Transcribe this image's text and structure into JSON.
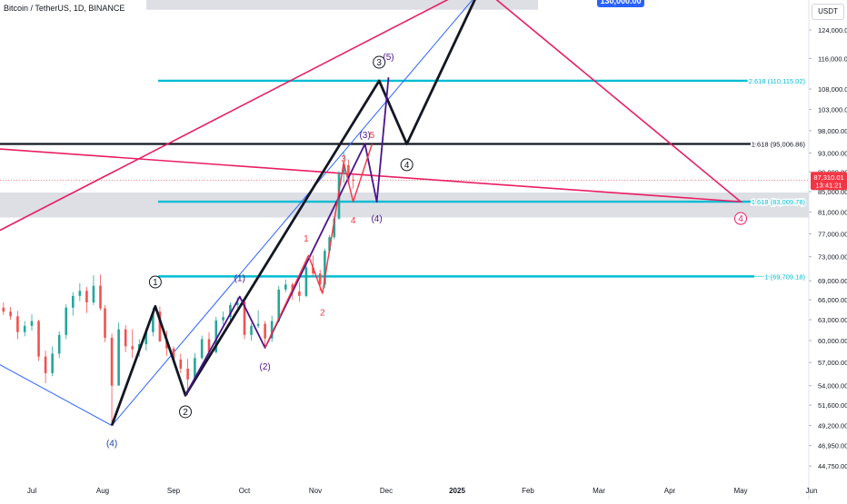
{
  "header": {
    "title": "Bitcoin / TetherUS, 1D, BINANCE",
    "currency": "USDT"
  },
  "colors": {
    "up": "#26a69a",
    "down": "#ef5350",
    "black_path": "#131722",
    "purple_path": "#4a148c",
    "red_path": "#f23645",
    "trend_blue": "#2962ff",
    "channel_pink": "#e91e63",
    "fib_cyan": "#00bcd4",
    "zone_gray": "#d1d4dc",
    "price_label": "#f23645"
  },
  "callout": {
    "label": "130,000.00"
  },
  "chart_data": {
    "type": "candlestick",
    "y_scale": "log",
    "ylim": [
      43000,
      133000
    ],
    "x_labels": [
      "Jul",
      "Aug",
      "Sep",
      "Oct",
      "Nov",
      "Dec",
      "2025",
      "Feb",
      "Mar",
      "Apr",
      "May",
      "Jun"
    ],
    "y_ticks": [
      {
        "v": 124000,
        "label": "124,000.00"
      },
      {
        "v": 116000,
        "label": "116,000.00"
      },
      {
        "v": 108000,
        "label": "108,000.00"
      },
      {
        "v": 103000,
        "label": "103,000.00"
      },
      {
        "v": 98000,
        "label": "98,000.00"
      },
      {
        "v": 93000,
        "label": "93,000.00"
      },
      {
        "v": 89000,
        "label": "89,000.00"
      },
      {
        "v": 85000,
        "label": "85,000.00"
      },
      {
        "v": 81000,
        "label": "81,000.00"
      },
      {
        "v": 77000,
        "label": "77,000.00"
      },
      {
        "v": 73000,
        "label": "73,000.00"
      },
      {
        "v": 69000,
        "label": "69,000.00"
      },
      {
        "v": 66000,
        "label": "66,000.00"
      },
      {
        "v": 63000,
        "label": "63,000.00"
      },
      {
        "v": 60000,
        "label": "60,000.00"
      },
      {
        "v": 57000,
        "label": "57,000.00"
      },
      {
        "v": 54000,
        "label": "54,000.00"
      },
      {
        "v": 51600,
        "label": "51,600.00"
      },
      {
        "v": 49200,
        "label": "49,200.00"
      },
      {
        "v": 46950,
        "label": "46,950.00"
      },
      {
        "v": 44750,
        "label": "44,750.00"
      }
    ],
    "current_price": {
      "value": 87310.01,
      "label": "87,310.01",
      "countdown": "13:41:21"
    },
    "fib_levels": [
      {
        "value": 110115.02,
        "label": "2.618 (110,115.02)",
        "color": "#00bcd4"
      },
      {
        "value": 95006.86,
        "label": "1.618 (95,006.86)",
        "color": "#131722"
      },
      {
        "value": 83009.78,
        "label": "1.618 (83,009.78)",
        "color": "#00bcd4"
      },
      {
        "value": 69709.18,
        "label": "1 (69,709.18)",
        "color": "#00bcd4"
      }
    ],
    "gray_zones": [
      {
        "from": 80000,
        "to": 84800
      },
      {
        "from": 130000,
        "to": 140000
      }
    ],
    "trendlines": [
      {
        "name": "blue-support",
        "color": "#2962ff",
        "points": [
          [
            "Jun 10",
            58000
          ],
          [
            "Aug 5",
            49200
          ]
        ]
      },
      {
        "name": "blue-channel",
        "color": "#2962ff",
        "points": [
          [
            "Aug 5",
            49200
          ],
          [
            "Jan 10",
            135000
          ]
        ]
      },
      {
        "name": "pink-upper",
        "color": "#e91e63",
        "points": [
          [
            "Jun 10",
            76000
          ],
          [
            "Jan 2",
            135000
          ]
        ]
      },
      {
        "name": "pink-projection",
        "color": "#e91e63",
        "points": [
          [
            "Jan 15",
            135000
          ],
          [
            "May 1",
            83000
          ],
          [
            "Jun 1",
            94500
          ]
        ]
      }
    ],
    "wave_paths": [
      {
        "name": "black-impulse",
        "color": "#131722",
        "points": [
          [
            "Aug 5",
            49200
          ],
          [
            "Aug 24",
            65000
          ],
          [
            "Sep 6",
            52800
          ],
          [
            "Nov 28",
            110115
          ],
          [
            "Dec 10",
            95000
          ],
          [
            "Jan 10",
            135000
          ]
        ]
      },
      {
        "name": "purple-impulse",
        "color": "#4a148c",
        "points": [
          [
            "Sep 6",
            52800
          ],
          [
            "Sep 29",
            66500
          ],
          [
            "Oct 10",
            59000
          ],
          [
            "Nov 22",
            95000
          ],
          [
            "Nov 27",
            83000
          ],
          [
            "Dec 2",
            111000
          ]
        ]
      },
      {
        "name": "red-impulse",
        "color": "#f23645",
        "points": [
          [
            "Oct 10",
            59000
          ],
          [
            "Oct 29",
            73200
          ],
          [
            "Nov 4",
            67000
          ],
          [
            "Nov 13",
            91000
          ],
          [
            "Nov 17",
            83000
          ],
          [
            "Nov 25",
            95000
          ]
        ]
      }
    ],
    "wave_labels": [
      {
        "text": "1",
        "date": "Aug 24",
        "price": 68800,
        "color": "#131722",
        "circled": true
      },
      {
        "text": "2",
        "date": "Sep 6",
        "price": 50800,
        "color": "#131722",
        "circled": true
      },
      {
        "text": "3",
        "date": "Nov 28",
        "price": 115000,
        "color": "#131722",
        "circled": true
      },
      {
        "text": "4",
        "date": "Dec 10",
        "price": 90500,
        "color": "#131722",
        "circled": true
      },
      {
        "text": "(4)",
        "date": "Aug 5",
        "price": 47200,
        "color": "#1e3fa0",
        "circled": false
      },
      {
        "text": "(1)",
        "date": "Sep 29",
        "price": 69500,
        "color": "#4a148c",
        "circled": false
      },
      {
        "text": "(2)",
        "date": "Oct 10",
        "price": 56500,
        "color": "#4a148c",
        "circled": false
      },
      {
        "text": "(3)",
        "date": "Nov 22",
        "price": 97000,
        "color": "#4a148c",
        "circled": false
      },
      {
        "text": "(4)",
        "date": "Nov 27",
        "price": 79800,
        "color": "#4a148c",
        "circled": false
      },
      {
        "text": "(5)",
        "date": "Dec 2",
        "price": 116500,
        "color": "#4a148c",
        "circled": false
      },
      {
        "text": "1",
        "date": "Oct 28",
        "price": 76200,
        "color": "#f23645",
        "circled": false
      },
      {
        "text": "2",
        "date": "Nov 4",
        "price": 64100,
        "color": "#f23645",
        "circled": false
      },
      {
        "text": "3",
        "date": "Nov 13",
        "price": 91800,
        "color": "#f23645",
        "circled": false
      },
      {
        "text": "4",
        "date": "Nov 17",
        "price": 79500,
        "color": "#f23645",
        "circled": false
      },
      {
        "text": "5",
        "date": "Nov 25",
        "price": 97000,
        "color": "#f23645",
        "circled": false
      },
      {
        "text": "4",
        "date": "May 1",
        "price": 79800,
        "color": "#e91e63",
        "circled": true
      }
    ],
    "candles": [
      {
        "d": "Jun 10",
        "o": 67800,
        "h": 68500,
        "l": 66200,
        "c": 66900
      },
      {
        "d": "Jun 13",
        "o": 66900,
        "h": 67500,
        "l": 65200,
        "c": 66100
      },
      {
        "d": "Jun 16",
        "o": 66100,
        "h": 66800,
        "l": 64200,
        "c": 64800
      },
      {
        "d": "Jun 19",
        "o": 64800,
        "h": 65600,
        "l": 63700,
        "c": 64200
      },
      {
        "d": "Jun 22",
        "o": 64200,
        "h": 64900,
        "l": 63000,
        "c": 63500
      },
      {
        "d": "Jun 25",
        "o": 63500,
        "h": 64300,
        "l": 60200,
        "c": 61200
      },
      {
        "d": "Jun 28",
        "o": 61200,
        "h": 62800,
        "l": 60600,
        "c": 62100
      },
      {
        "d": "Jul 1",
        "o": 62100,
        "h": 63800,
        "l": 61400,
        "c": 62800
      },
      {
        "d": "Jul 4",
        "o": 62800,
        "h": 63000,
        "l": 57200,
        "c": 57800
      },
      {
        "d": "Jul 7",
        "o": 57800,
        "h": 58600,
        "l": 54300,
        "c": 55600
      },
      {
        "d": "Jul 10",
        "o": 55600,
        "h": 59200,
        "l": 55200,
        "c": 58200
      },
      {
        "d": "Jul 13",
        "o": 58200,
        "h": 61300,
        "l": 57600,
        "c": 60800
      },
      {
        "d": "Jul 16",
        "o": 60800,
        "h": 65300,
        "l": 60200,
        "c": 64800
      },
      {
        "d": "Jul 19",
        "o": 64800,
        "h": 67200,
        "l": 63600,
        "c": 66600
      },
      {
        "d": "Jul 22",
        "o": 66600,
        "h": 68600,
        "l": 65800,
        "c": 67400
      },
      {
        "d": "Jul 25",
        "o": 67400,
        "h": 68000,
        "l": 64000,
        "c": 65600
      },
      {
        "d": "Jul 28",
        "o": 65600,
        "h": 69900,
        "l": 65200,
        "c": 68200
      },
      {
        "d": "Jul 31",
        "o": 68200,
        "h": 70000,
        "l": 64400,
        "c": 64700
      },
      {
        "d": "Aug 2",
        "o": 64700,
        "h": 65200,
        "l": 59800,
        "c": 60400
      },
      {
        "d": "Aug 5",
        "o": 60400,
        "h": 61000,
        "l": 49200,
        "c": 54000
      },
      {
        "d": "Aug 8",
        "o": 54000,
        "h": 62600,
        "l": 54200,
        "c": 61600
      },
      {
        "d": "Aug 11",
        "o": 61600,
        "h": 62200,
        "l": 58400,
        "c": 59200
      },
      {
        "d": "Aug 14",
        "o": 59200,
        "h": 61600,
        "l": 57600,
        "c": 58800
      },
      {
        "d": "Aug 17",
        "o": 58800,
        "h": 60200,
        "l": 57800,
        "c": 59500
      },
      {
        "d": "Aug 20",
        "o": 59500,
        "h": 61800,
        "l": 58600,
        "c": 61200
      },
      {
        "d": "Aug 23",
        "o": 61200,
        "h": 64800,
        "l": 60600,
        "c": 64200
      },
      {
        "d": "Aug 26",
        "o": 64200,
        "h": 65000,
        "l": 59800,
        "c": 59900
      },
      {
        "d": "Aug 29",
        "o": 59900,
        "h": 61400,
        "l": 57900,
        "c": 58900
      },
      {
        "d": "Sep 1",
        "o": 58900,
        "h": 59200,
        "l": 57200,
        "c": 57400
      },
      {
        "d": "Sep 4",
        "o": 57400,
        "h": 58200,
        "l": 55600,
        "c": 56200
      },
      {
        "d": "Sep 7",
        "o": 56200,
        "h": 57500,
        "l": 52800,
        "c": 54800
      },
      {
        "d": "Sep 10",
        "o": 54800,
        "h": 58300,
        "l": 54600,
        "c": 57600
      },
      {
        "d": "Sep 13",
        "o": 57600,
        "h": 60700,
        "l": 57400,
        "c": 60200
      },
      {
        "d": "Sep 16",
        "o": 60200,
        "h": 61200,
        "l": 57600,
        "c": 58400
      },
      {
        "d": "Sep 19",
        "o": 58400,
        "h": 63400,
        "l": 58200,
        "c": 62900
      },
      {
        "d": "Sep 22",
        "o": 62900,
        "h": 64200,
        "l": 62300,
        "c": 63400
      },
      {
        "d": "Sep 25",
        "o": 63400,
        "h": 65600,
        "l": 62800,
        "c": 65200
      },
      {
        "d": "Sep 28",
        "o": 65200,
        "h": 66400,
        "l": 64800,
        "c": 65700
      },
      {
        "d": "Oct 1",
        "o": 65700,
        "h": 66000,
        "l": 60200,
        "c": 60800
      },
      {
        "d": "Oct 4",
        "o": 60800,
        "h": 62500,
        "l": 60000,
        "c": 62100
      },
      {
        "d": "Oct 7",
        "o": 62100,
        "h": 64400,
        "l": 61800,
        "c": 62400
      },
      {
        "d": "Oct 10",
        "o": 62400,
        "h": 62800,
        "l": 58900,
        "c": 60300
      },
      {
        "d": "Oct 13",
        "o": 60300,
        "h": 63600,
        "l": 59800,
        "c": 62800
      },
      {
        "d": "Oct 16",
        "o": 62800,
        "h": 68200,
        "l": 62600,
        "c": 67600
      },
      {
        "d": "Oct 19",
        "o": 67600,
        "h": 69200,
        "l": 67200,
        "c": 68400
      },
      {
        "d": "Oct 22",
        "o": 68400,
        "h": 68700,
        "l": 66000,
        "c": 67300
      },
      {
        "d": "Oct 25",
        "o": 67300,
        "h": 68800,
        "l": 65700,
        "c": 66600
      },
      {
        "d": "Oct 28",
        "o": 66600,
        "h": 71600,
        "l": 66400,
        "c": 71200
      },
      {
        "d": "Oct 31",
        "o": 71200,
        "h": 73200,
        "l": 69600,
        "c": 70200
      },
      {
        "d": "Nov 3",
        "o": 70200,
        "h": 70800,
        "l": 67400,
        "c": 68400
      },
      {
        "d": "Nov 5",
        "o": 68400,
        "h": 74400,
        "l": 67800,
        "c": 74000
      },
      {
        "d": "Nov 7",
        "o": 74000,
        "h": 76800,
        "l": 73600,
        "c": 76400
      },
      {
        "d": "Nov 9",
        "o": 76400,
        "h": 80200,
        "l": 76000,
        "c": 79800
      },
      {
        "d": "Nov 11",
        "o": 79800,
        "h": 89200,
        "l": 79600,
        "c": 88600
      },
      {
        "d": "Nov 13",
        "o": 88600,
        "h": 93400,
        "l": 86800,
        "c": 90400
      },
      {
        "d": "Nov 15",
        "o": 90400,
        "h": 91600,
        "l": 86600,
        "c": 87400
      },
      {
        "d": "Nov 17",
        "o": 87400,
        "h": 88800,
        "l": 85600,
        "c": 87310
      }
    ]
  }
}
